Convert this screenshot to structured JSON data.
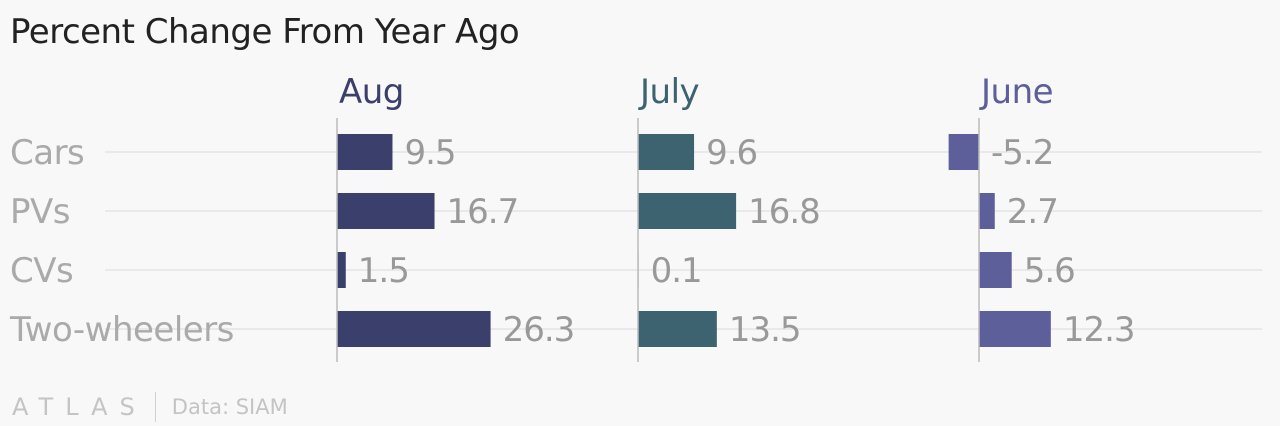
{
  "title": "Percent Change From Year Ago",
  "footer": {
    "logo": "ATLAS",
    "source": "Data: SIAM"
  },
  "colors": {
    "title_text": "#222222",
    "category_text": "#aaaaaa",
    "value_text": "#999999",
    "grid": "#e4e4e4",
    "axis": "#bbbbbb"
  },
  "chart_data": {
    "type": "bar",
    "orientation": "horizontal",
    "categories": [
      "Cars",
      "PVs",
      "CVs",
      "Two-wheelers"
    ],
    "series": [
      {
        "name": "Aug",
        "values": [
          9.5,
          16.7,
          1.5,
          26.3
        ],
        "color": "#3b3f6b"
      },
      {
        "name": "July",
        "values": [
          9.6,
          16.8,
          0.1,
          13.5
        ],
        "color": "#3d6270"
      },
      {
        "name": "June",
        "values": [
          -5.2,
          2.7,
          5.6,
          12.3
        ],
        "color": "#5d5f9b"
      }
    ],
    "value_labels": {
      "Aug": [
        "9.5",
        "16.7",
        "1.5",
        "26.3"
      ],
      "July": [
        "9.6",
        "16.8",
        "0.1",
        "13.5"
      ],
      "June": [
        "-5.2",
        "2.7",
        "5.6",
        "12.3"
      ]
    },
    "layout": "small multiples (one panel per series)",
    "grid": true,
    "legend": "none"
  }
}
